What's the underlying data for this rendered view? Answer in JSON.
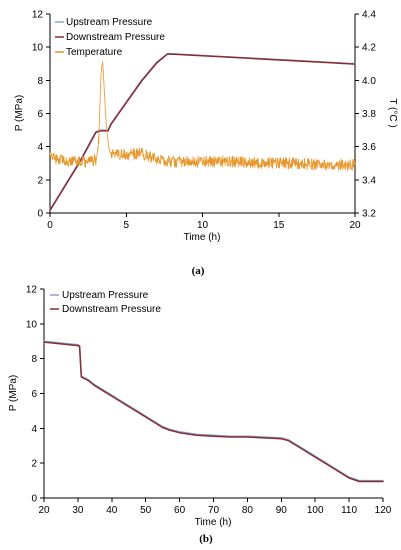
{
  "chart_data": [
    {
      "panel_label": "(a)",
      "type": "line",
      "xlabel": "Time (h)",
      "ylabel": "P (MPa)",
      "y2label": "T (°C )",
      "xlim": [
        0,
        20
      ],
      "ylim": [
        0,
        12
      ],
      "y2lim": [
        3.2,
        4.4
      ],
      "xticks": [
        0,
        5,
        10,
        15,
        20
      ],
      "yticks": [
        0,
        2,
        4,
        6,
        8,
        10,
        12
      ],
      "y2ticks": [
        3.2,
        3.4,
        3.6,
        3.8,
        4.0,
        4.2,
        4.4
      ],
      "legend_position": "top-left",
      "grid": false,
      "series": [
        {
          "name": "Upstream Pressure",
          "color": "#7fa8d8",
          "axis": "left",
          "x": [
            0,
            1,
            2,
            3,
            3.3,
            3.8,
            4,
            5,
            6,
            7,
            7.7,
            8,
            10,
            12,
            14,
            16,
            18,
            20
          ],
          "y": [
            0.2,
            1.7,
            3.2,
            4.9,
            5.0,
            5.0,
            5.4,
            6.7,
            8.0,
            9.1,
            9.6,
            9.6,
            9.5,
            9.4,
            9.3,
            9.2,
            9.1,
            9.0
          ]
        },
        {
          "name": "Downstream Pressure",
          "color": "#8b2a2e",
          "axis": "left",
          "x": [
            0,
            1,
            2,
            3,
            3.3,
            3.8,
            4,
            5,
            6,
            7,
            7.7,
            8,
            10,
            12,
            14,
            16,
            18,
            20
          ],
          "y": [
            0.15,
            1.65,
            3.15,
            4.85,
            4.95,
            4.95,
            5.35,
            6.65,
            7.95,
            9.05,
            9.58,
            9.58,
            9.48,
            9.38,
            9.28,
            9.18,
            9.08,
            8.98
          ]
        },
        {
          "name": "Temperature",
          "color": "#e8962a",
          "axis": "right",
          "x": [
            0,
            0.5,
            1,
            1.5,
            2,
            2.5,
            3,
            3.2,
            3.35,
            3.45,
            3.55,
            3.7,
            3.85,
            4.0,
            4.3,
            5,
            6,
            7,
            8,
            10,
            12,
            14,
            16,
            18,
            20
          ],
          "y": [
            3.54,
            3.52,
            3.52,
            3.51,
            3.51,
            3.51,
            3.52,
            3.65,
            4.05,
            4.12,
            3.95,
            3.72,
            3.6,
            3.55,
            3.56,
            3.55,
            3.56,
            3.52,
            3.51,
            3.51,
            3.51,
            3.5,
            3.5,
            3.49,
            3.49
          ]
        }
      ]
    },
    {
      "panel_label": "(b)",
      "type": "line",
      "xlabel": "Time (h)",
      "ylabel": "P (MPa)",
      "xlim": [
        20,
        120
      ],
      "ylim": [
        0,
        12
      ],
      "xticks": [
        20,
        30,
        40,
        50,
        60,
        70,
        80,
        90,
        100,
        110,
        120
      ],
      "yticks": [
        0,
        2,
        4,
        6,
        8,
        10,
        12
      ],
      "legend_position": "top-left",
      "grid": false,
      "series": [
        {
          "name": "Upstream Pressure",
          "color": "#7fa8d8",
          "x": [
            20,
            25,
            30,
            30.5,
            31,
            33,
            35,
            40,
            45,
            50,
            55,
            57,
            60,
            65,
            70,
            75,
            80,
            85,
            90,
            92,
            95,
            100,
            105,
            110,
            113,
            115,
            120
          ],
          "y": [
            9.0,
            8.9,
            8.8,
            8.75,
            7.0,
            6.8,
            6.5,
            5.9,
            5.3,
            4.7,
            4.1,
            3.95,
            3.8,
            3.65,
            3.6,
            3.55,
            3.55,
            3.5,
            3.45,
            3.35,
            3.0,
            2.4,
            1.8,
            1.2,
            1.0,
            1.0,
            1.0
          ]
        },
        {
          "name": "Downstream Pressure",
          "color": "#8b2a2e",
          "x": [
            20,
            25,
            30,
            30.5,
            31,
            33,
            35,
            40,
            45,
            50,
            55,
            57,
            60,
            65,
            70,
            75,
            80,
            85,
            90,
            92,
            95,
            100,
            105,
            110,
            113,
            115,
            120
          ],
          "y": [
            8.95,
            8.85,
            8.75,
            8.7,
            6.95,
            6.75,
            6.45,
            5.85,
            5.25,
            4.65,
            4.05,
            3.9,
            3.75,
            3.6,
            3.55,
            3.5,
            3.5,
            3.45,
            3.4,
            3.3,
            2.95,
            2.35,
            1.75,
            1.15,
            0.95,
            0.95,
            0.95
          ]
        }
      ]
    }
  ]
}
